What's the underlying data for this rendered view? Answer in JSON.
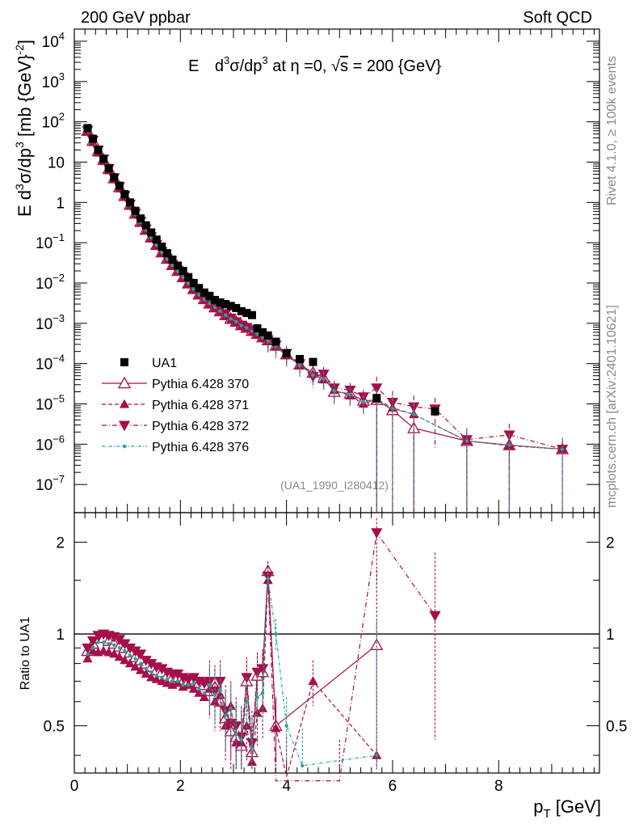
{
  "header": {
    "left": "200 GeV ppbar",
    "right": "Soft QCD"
  },
  "side": {
    "rivet": "Rivet 4.1.0, ≥ 100k events",
    "site": "mcplots.cern.ch [arXiv:2401.10621]"
  },
  "colors": {
    "data": "#000000",
    "mc": "#a50f4a",
    "mc376": "#2aa198",
    "frame": "#000000"
  },
  "chart_data": [
    {
      "type": "scatter",
      "panel": "main",
      "title": "E d³σ/dp³ at η = 0, √s = 200 {GeV}",
      "title_parts": {
        "e": "E",
        "d": "d",
        "s3": "3",
        "sigma": "σ/dp",
        "p3": "3",
        "eta": " at η =0, ",
        "sqrt": "√",
        "s": "s",
        "rest": " = 200 {GeV}"
      },
      "ylabel": "E d³σ/dp³ [mb {GeV}⁻²]",
      "ylabel_parts": {
        "a": "E  d",
        "b": "3",
        "c": "σ/dp",
        "d": "3",
        "e": " [mb {GeV}",
        "f": "-2",
        "g": "]"
      },
      "xlim": [
        0,
        9.9
      ],
      "ylim_log": [
        2e-08,
        20000
      ],
      "yscale": "log",
      "yticks": [
        {
          "v": 10000,
          "m": "10",
          "e": "4"
        },
        {
          "v": 1000,
          "m": "10",
          "e": "3"
        },
        {
          "v": 100,
          "m": "10",
          "e": "2"
        },
        {
          "v": 10,
          "m": "10",
          "e": ""
        },
        {
          "v": 1,
          "m": "1",
          "e": ""
        },
        {
          "v": 0.1,
          "m": "10",
          "e": "−1"
        },
        {
          "v": 0.01,
          "m": "10",
          "e": "−2"
        },
        {
          "v": 0.001,
          "m": "10",
          "e": "−3"
        },
        {
          "v": 0.0001,
          "m": "10",
          "e": "−4"
        },
        {
          "v": 1e-05,
          "m": "10",
          "e": "−5"
        },
        {
          "v": 1e-06,
          "m": "10",
          "e": "−6"
        },
        {
          "v": 1e-07,
          "m": "10",
          "e": "−7"
        }
      ],
      "watermark": "(UA1_1990_I280412)",
      "legend": {
        "position": "bottom-left",
        "entries": [
          {
            "label": "UA1",
            "style": "data"
          },
          {
            "label": "Pythia 6.428 370",
            "style": "open-triangle-up"
          },
          {
            "label": "Pythia 6.428 371",
            "style": "filled-triangle-up"
          },
          {
            "label": "Pythia 6.428 372",
            "style": "filled-triangle-down"
          },
          {
            "label": "Pythia 6.428 376",
            "style": "dash-dot"
          }
        ]
      },
      "series": [
        {
          "name": "UA1",
          "x": [
            0.25,
            0.35,
            0.45,
            0.55,
            0.65,
            0.75,
            0.85,
            0.95,
            1.05,
            1.15,
            1.25,
            1.35,
            1.45,
            1.55,
            1.65,
            1.75,
            1.85,
            1.95,
            2.05,
            2.15,
            2.25,
            2.35,
            2.45,
            2.55,
            2.65,
            2.75,
            2.85,
            2.95,
            3.05,
            3.15,
            3.25,
            3.35,
            3.45,
            3.55,
            3.65,
            3.8,
            4.0,
            4.25,
            4.5,
            5.7,
            6.8
          ],
          "y": [
            70,
            38,
            20,
            12,
            7,
            4.2,
            2.6,
            1.6,
            1.0,
            0.62,
            0.4,
            0.27,
            0.18,
            0.12,
            0.08,
            0.055,
            0.038,
            0.027,
            0.02,
            0.014,
            0.01,
            0.0075,
            0.0058,
            0.0048,
            0.0038,
            0.0033,
            0.003,
            0.0027,
            0.0024,
            0.002,
            0.0018,
            0.0016,
            0.00075,
            0.0006,
            0.0005,
            0.00035,
            0.00018,
            0.00013,
            0.00011,
            1.4e-05,
            6.5e-06
          ]
        },
        {
          "name": "Pythia 6.428 370",
          "x": [
            0.25,
            0.35,
            0.45,
            0.55,
            0.65,
            0.75,
            0.85,
            0.95,
            1.05,
            1.15,
            1.25,
            1.35,
            1.45,
            1.55,
            1.65,
            1.75,
            1.85,
            1.95,
            2.05,
            2.15,
            2.25,
            2.35,
            2.45,
            2.55,
            2.65,
            2.75,
            2.85,
            2.95,
            3.05,
            3.15,
            3.25,
            3.35,
            3.45,
            3.55,
            3.65,
            3.8,
            4.0,
            4.25,
            4.5,
            4.7,
            4.9,
            5.2,
            5.45,
            5.7,
            6.0,
            6.4,
            7.4,
            8.2,
            9.2
          ],
          "y": [
            60,
            34,
            19,
            11.5,
            6.8,
            4.0,
            2.4,
            1.45,
            0.88,
            0.53,
            0.33,
            0.21,
            0.135,
            0.088,
            0.058,
            0.04,
            0.028,
            0.02,
            0.014,
            0.0098,
            0.0071,
            0.0052,
            0.004,
            0.0031,
            0.0025,
            0.002,
            0.0016,
            0.0013,
            0.0011,
            0.0009,
            0.00078,
            0.00065,
            0.00055,
            0.00045,
            0.00038,
            0.00028,
            0.00017,
            9.5e-05,
            6e-05,
            4.5e-05,
            2e-05,
            1.8e-05,
            1.2e-05,
            1.25e-05,
            7e-06,
            2.5e-06,
            1.2e-06,
            9.5e-07,
            7.5e-07
          ]
        },
        {
          "name": "Pythia 6.428 371",
          "x": [
            0.25,
            0.35,
            0.45,
            0.55,
            0.65,
            0.75,
            0.85,
            0.95,
            1.05,
            1.15,
            1.25,
            1.35,
            1.45,
            1.55,
            1.65,
            1.75,
            1.85,
            1.95,
            2.05,
            2.15,
            2.25,
            2.35,
            2.45,
            2.55,
            2.65,
            2.75,
            2.85,
            2.95,
            3.05,
            3.15,
            3.25,
            3.35,
            3.45,
            3.55,
            3.65,
            3.8,
            4.0,
            4.25,
            4.5,
            4.7,
            4.9,
            5.2,
            5.45,
            5.7,
            6.0,
            6.4,
            7.4,
            8.2,
            9.2
          ],
          "y": [
            58,
            31,
            17,
            10.5,
            6.2,
            3.7,
            2.2,
            1.35,
            0.82,
            0.5,
            0.31,
            0.2,
            0.13,
            0.085,
            0.056,
            0.038,
            0.027,
            0.019,
            0.0135,
            0.0095,
            0.0069,
            0.005,
            0.0038,
            0.003,
            0.0024,
            0.0019,
            0.0015,
            0.0012,
            0.00105,
            0.00085,
            0.00075,
            0.0006,
            0.00052,
            0.00043,
            0.00036,
            0.00026,
            0.00016,
            9e-05,
            5.5e-05,
            4e-05,
            2.2e-05,
            1.6e-05,
            1e-05,
            1.3e-05,
            8e-06,
            5.5e-06,
            1.2e-06,
            9.2e-07,
            7.5e-07
          ]
        },
        {
          "name": "Pythia 6.428 372",
          "x": [
            0.25,
            0.35,
            0.45,
            0.55,
            0.65,
            0.75,
            0.85,
            0.95,
            1.05,
            1.15,
            1.25,
            1.35,
            1.45,
            1.55,
            1.65,
            1.75,
            1.85,
            1.95,
            2.05,
            2.15,
            2.25,
            2.35,
            2.45,
            2.55,
            2.65,
            2.75,
            2.85,
            2.95,
            3.05,
            3.15,
            3.25,
            3.35,
            3.45,
            3.55,
            3.65,
            3.8,
            4.0,
            4.25,
            4.5,
            4.7,
            4.9,
            5.2,
            5.45,
            5.7,
            6.0,
            6.4,
            6.8,
            7.4,
            8.2,
            9.2
          ],
          "y": [
            62,
            35,
            20,
            12,
            7.0,
            4.1,
            2.45,
            1.48,
            0.9,
            0.54,
            0.34,
            0.22,
            0.14,
            0.09,
            0.06,
            0.041,
            0.029,
            0.021,
            0.0145,
            0.01,
            0.0073,
            0.0054,
            0.0041,
            0.0032,
            0.0026,
            0.0021,
            0.0017,
            0.00135,
            0.0011,
            0.0009,
            0.00079,
            0.00066,
            0.00056,
            0.00046,
            0.00039,
            0.00029,
            0.00018,
            0.0001,
            4.8e-05,
            5.5e-05,
            2.5e-05,
            2.2e-05,
            1.5e-05,
            2.5e-05,
            1.1e-05,
            8.5e-06,
            7.5e-06,
            1.3e-06,
            1.7e-06,
            7.5e-07
          ]
        },
        {
          "name": "Pythia 6.428 376",
          "x": [
            0.25,
            0.35,
            0.45,
            0.55,
            0.65,
            0.75,
            0.85,
            0.95,
            1.05,
            1.15,
            1.25,
            1.35,
            1.45,
            1.55,
            1.65,
            1.75,
            1.85,
            1.95,
            2.05,
            2.15,
            2.25,
            2.35,
            2.45,
            2.55,
            2.65,
            2.75,
            2.85,
            2.95,
            3.05,
            3.15,
            3.25,
            3.35,
            3.45,
            3.55,
            3.65,
            3.8,
            4.0,
            4.25,
            4.5,
            4.7,
            4.9,
            5.2,
            5.45,
            5.7,
            6.0,
            6.4,
            7.4,
            8.2,
            9.2
          ],
          "y": [
            60,
            33,
            18.5,
            11.2,
            6.6,
            3.9,
            2.35,
            1.42,
            0.86,
            0.52,
            0.32,
            0.21,
            0.135,
            0.087,
            0.057,
            0.039,
            0.0275,
            0.0195,
            0.0138,
            0.0097,
            0.007,
            0.0051,
            0.0039,
            0.0031,
            0.0025,
            0.002,
            0.0016,
            0.0013,
            0.0011,
            0.00088,
            0.00077,
            0.00064,
            0.00054,
            0.00044,
            0.00037,
            0.00027,
            0.000165,
            9e-05,
            5.2e-05,
            4.2e-05,
            2.1e-05,
            1.7e-05,
            1.1e-05,
            1.2e-05,
            7.5e-06,
            5.5e-06,
            1.2e-06,
            9.5e-07,
            7.5e-07
          ]
        }
      ]
    },
    {
      "type": "line",
      "panel": "ratio",
      "ylabel": "Ratio to UA1",
      "xlabel": "p_T [GeV]",
      "xlabel_parts": {
        "p": "p",
        "sub": "T",
        "rest": " [GeV]"
      },
      "xlim": [
        0,
        9.9
      ],
      "ylim_log": [
        0.35,
        2.5
      ],
      "yscale": "log",
      "xticks": [
        {
          "v": 0,
          "label": "0"
        },
        {
          "v": 2,
          "label": "2"
        },
        {
          "v": 4,
          "label": "4"
        },
        {
          "v": 6,
          "label": "6"
        },
        {
          "v": 8,
          "label": "8"
        }
      ],
      "yticks": [
        {
          "v": 0.5,
          "label": "0.5"
        },
        {
          "v": 1,
          "label": "1"
        },
        {
          "v": 2,
          "label": "2"
        }
      ],
      "reference": 1,
      "series": [
        {
          "name": "Pythia 6.428 370",
          "x": [
            0.25,
            0.35,
            0.45,
            0.55,
            0.65,
            0.75,
            0.85,
            0.95,
            1.05,
            1.15,
            1.25,
            1.35,
            1.45,
            1.55,
            1.65,
            1.75,
            1.85,
            1.95,
            2.05,
            2.15,
            2.25,
            2.35,
            2.45,
            2.55,
            2.65,
            2.75,
            2.85,
            2.95,
            3.05,
            3.15,
            3.25,
            3.35,
            3.45,
            3.55,
            3.65,
            3.8,
            5.7
          ],
          "y": [
            0.88,
            0.93,
            0.97,
            0.97,
            0.95,
            0.93,
            0.91,
            0.9,
            0.87,
            0.84,
            0.82,
            0.8,
            0.78,
            0.76,
            0.75,
            0.73,
            0.72,
            0.72,
            0.7,
            0.7,
            0.71,
            0.69,
            0.68,
            0.65,
            0.67,
            0.6,
            0.53,
            0.48,
            0.46,
            0.43,
            0.7,
            0.41,
            0.73,
            0.75,
            1.61,
            0.5,
            0.92
          ]
        },
        {
          "name": "Pythia 6.428 371",
          "x": [
            0.25,
            0.35,
            0.45,
            0.55,
            0.65,
            0.75,
            0.85,
            0.95,
            1.05,
            1.15,
            1.25,
            1.35,
            1.45,
            1.55,
            1.65,
            1.75,
            1.85,
            1.95,
            2.05,
            2.15,
            2.25,
            2.35,
            2.45,
            2.55,
            2.65,
            2.75,
            2.85,
            2.95,
            3.05,
            3.15,
            3.25,
            3.35,
            3.45,
            3.55,
            3.65,
            3.8,
            4.0,
            4.5,
            5.7
          ],
          "y": [
            0.83,
            0.88,
            0.87,
            0.88,
            0.87,
            0.86,
            0.84,
            0.82,
            0.8,
            0.78,
            0.76,
            0.74,
            0.72,
            0.71,
            0.7,
            0.69,
            0.68,
            0.69,
            0.67,
            0.68,
            0.66,
            0.64,
            0.62,
            0.66,
            0.6,
            0.63,
            0.5,
            0.58,
            0.44,
            0.44,
            0.5,
            0.38,
            0.55,
            0.57,
            1.5,
            0.49,
            0.34,
            0.7,
            0.4
          ]
        },
        {
          "name": "Pythia 6.428 372",
          "x": [
            0.25,
            0.35,
            0.45,
            0.55,
            0.65,
            0.75,
            0.85,
            0.95,
            1.05,
            1.15,
            1.25,
            1.35,
            1.45,
            1.55,
            1.65,
            1.75,
            1.85,
            1.95,
            2.05,
            2.15,
            2.25,
            2.35,
            2.45,
            2.55,
            2.65,
            2.75,
            2.85,
            2.95,
            3.05,
            3.15,
            3.25,
            3.35,
            3.45,
            3.55,
            3.65,
            3.8,
            5.0,
            5.7,
            6.8
          ],
          "y": [
            0.9,
            0.95,
            0.99,
            1.0,
            0.99,
            0.98,
            0.96,
            0.93,
            0.9,
            0.88,
            0.86,
            0.82,
            0.8,
            0.78,
            0.77,
            0.75,
            0.74,
            0.74,
            0.72,
            0.71,
            0.72,
            0.7,
            0.69,
            0.7,
            0.65,
            0.7,
            0.56,
            0.51,
            0.5,
            0.46,
            0.72,
            0.44,
            0.75,
            0.77,
            1.55,
            0.33,
            0.33,
            2.15,
            1.15
          ]
        },
        {
          "name": "Pythia 6.428 376",
          "x": [
            0.25,
            0.35,
            0.45,
            0.55,
            0.65,
            0.75,
            0.85,
            0.95,
            1.05,
            1.15,
            1.25,
            1.35,
            1.45,
            1.55,
            1.65,
            1.75,
            1.85,
            1.95,
            2.05,
            2.15,
            2.25,
            2.35,
            2.45,
            2.55,
            2.65,
            2.75,
            2.85,
            2.95,
            3.05,
            3.15,
            3.25,
            3.35,
            3.45,
            3.55,
            3.65,
            3.8,
            4.0,
            4.3,
            5.7
          ],
          "y": [
            0.86,
            0.9,
            0.94,
            0.94,
            0.93,
            0.92,
            0.9,
            0.88,
            0.85,
            0.83,
            0.8,
            0.77,
            0.75,
            0.73,
            0.72,
            0.71,
            0.7,
            0.7,
            0.68,
            0.68,
            0.69,
            0.66,
            0.64,
            0.68,
            0.63,
            0.66,
            0.54,
            0.57,
            0.47,
            0.45,
            0.6,
            0.42,
            0.62,
            0.64,
            1.52,
            1.0,
            0.5,
            0.37,
            0.4
          ]
        }
      ]
    }
  ]
}
